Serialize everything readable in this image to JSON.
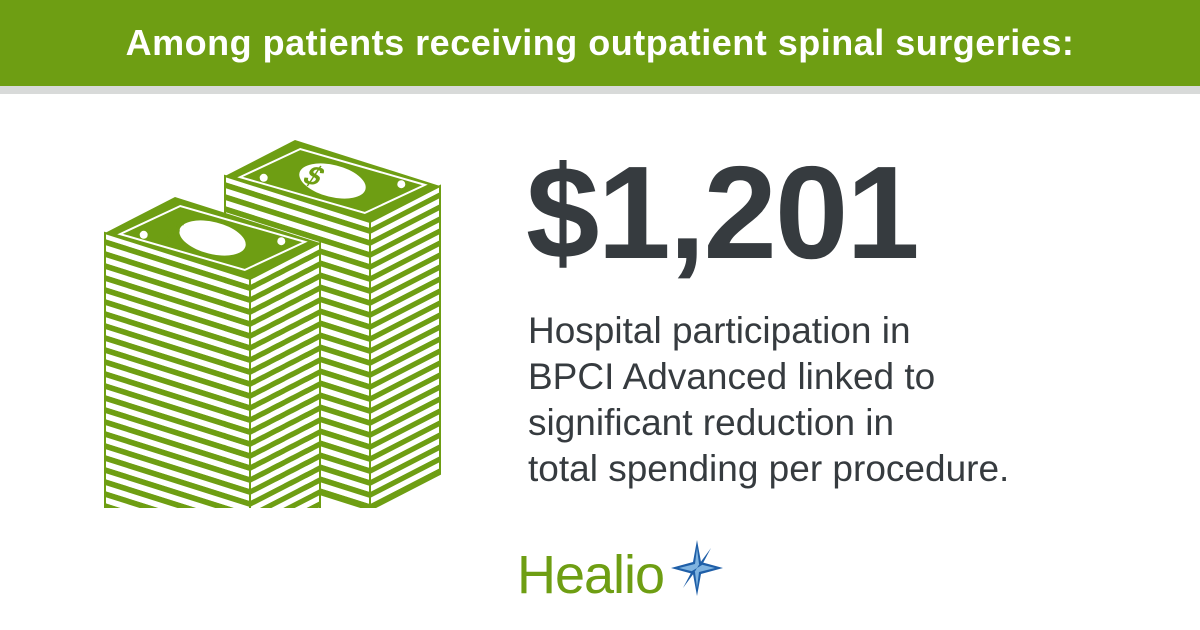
{
  "banner": {
    "text": "Among patients receiving outpatient spinal surgeries:"
  },
  "headline": {
    "value": "$1,201"
  },
  "description": {
    "lines": [
      "Hospital participation in",
      "BPCI Advanced linked to",
      "significant reduction in",
      "total spending per procedure."
    ]
  },
  "logo": {
    "text": "Healio",
    "icon": "healio-star-icon"
  },
  "illustration": {
    "icon": "money-stack-icon",
    "bill_symbol": "$"
  },
  "colors": {
    "brand_green": "#6e9e13",
    "text_dark": "#363b3f",
    "divider_gray": "#d8dad9",
    "star_blue": "#1f5fa8",
    "star_light": "#7fb3e0"
  }
}
